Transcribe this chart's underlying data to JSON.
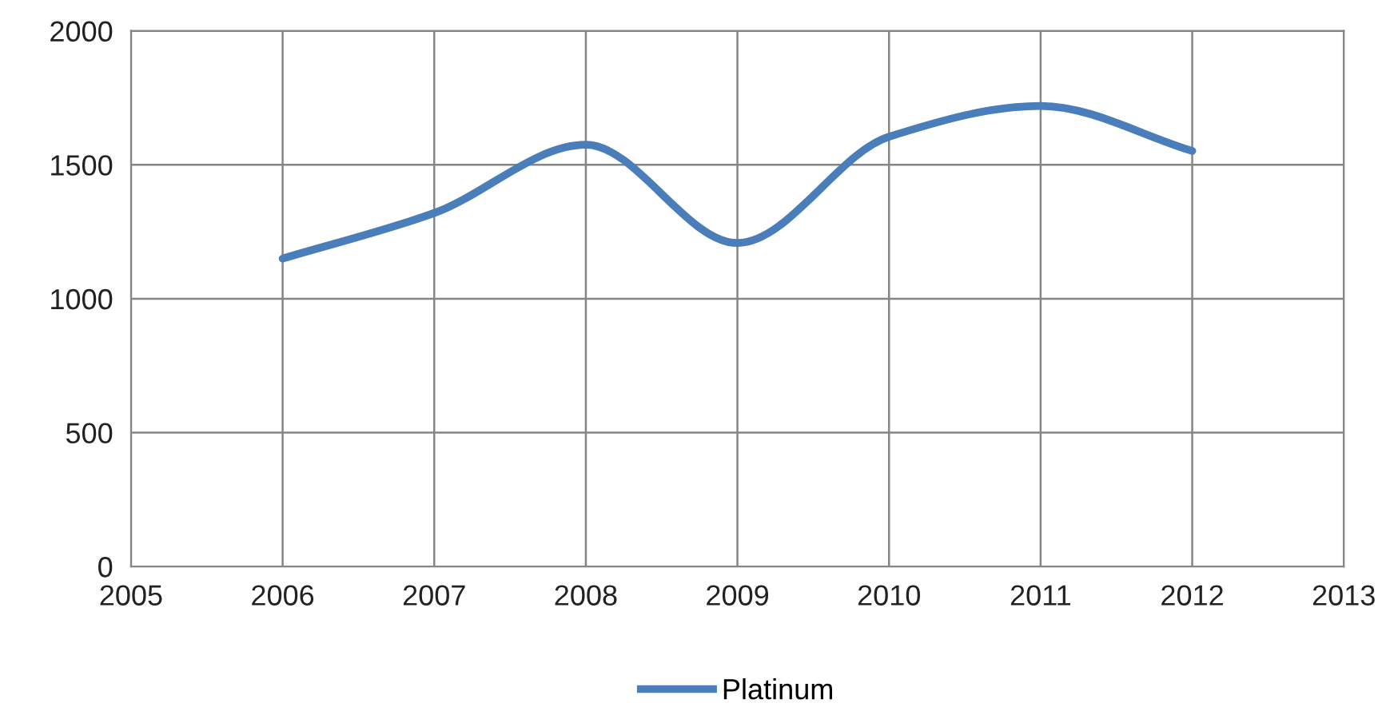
{
  "chart_data": {
    "type": "line",
    "x": [
      2006,
      2007,
      2008,
      2009,
      2010,
      2011,
      2012
    ],
    "series": [
      {
        "name": "Platinum",
        "color": "#4a7ebb",
        "values": [
          1150,
          1320,
          1575,
          1208,
          1605,
          1720,
          1552
        ]
      }
    ],
    "xlim": [
      2005,
      2013
    ],
    "xticks": [
      2005,
      2006,
      2007,
      2008,
      2009,
      2010,
      2011,
      2012,
      2013
    ],
    "ylim": [
      0,
      2000
    ],
    "yticks": [
      0,
      500,
      1000,
      1500,
      2000
    ],
    "grid": true,
    "legend": "bottom",
    "line_style": "solid",
    "marker": "none"
  }
}
